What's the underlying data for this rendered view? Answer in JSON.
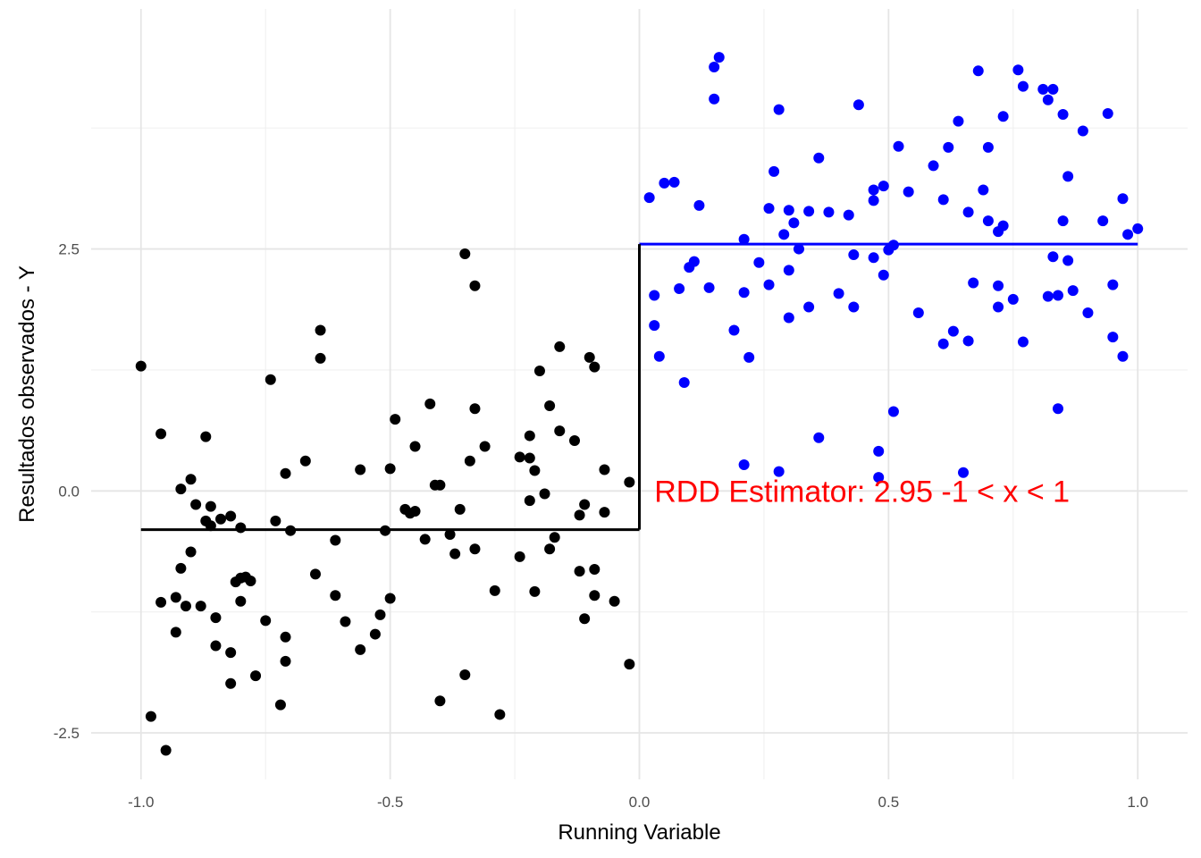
{
  "chart_data": {
    "type": "scatter",
    "title": "",
    "xlabel": "Running Variable",
    "ylabel": "Resultados observados - Y",
    "xlim": [
      -1.1,
      1.1
    ],
    "ylim": [
      -2.98,
      4.98
    ],
    "x_ticks": [
      -1.0,
      -0.5,
      0.0,
      0.5,
      1.0
    ],
    "x_tick_labels": [
      "-1.0",
      "-0.5",
      "0.0",
      "0.5",
      "1.0"
    ],
    "y_ticks": [
      -2.5,
      0.0,
      2.5
    ],
    "y_tick_labels": [
      "-2.5",
      "0.0",
      "2.5"
    ],
    "grid": true,
    "legend": "none",
    "cutoff": 0.0,
    "series": [
      {
        "side": "left",
        "color": "#000000",
        "fit": {
          "x": [
            -1.0,
            0.0
          ],
          "y": -0.4
        },
        "points": [
          [
            -1.0,
            1.29
          ],
          [
            -0.98,
            -2.33
          ],
          [
            -0.96,
            0.59
          ],
          [
            -0.96,
            -1.15
          ],
          [
            -0.95,
            -2.68
          ],
          [
            -0.93,
            -1.1
          ],
          [
            -0.93,
            -1.46
          ],
          [
            -0.92,
            0.02
          ],
          [
            -0.92,
            -0.8
          ],
          [
            -0.91,
            -1.19
          ],
          [
            -0.9,
            0.12
          ],
          [
            -0.9,
            -0.63
          ],
          [
            -0.89,
            -0.14
          ],
          [
            -0.88,
            -1.19
          ],
          [
            -0.87,
            0.56
          ],
          [
            -0.87,
            -0.31
          ],
          [
            -0.86,
            -0.36
          ],
          [
            -0.86,
            -0.16
          ],
          [
            -0.85,
            -1.31
          ],
          [
            -0.85,
            -1.6
          ],
          [
            -0.84,
            -0.29
          ],
          [
            -0.82,
            -1.67
          ],
          [
            -0.82,
            -0.26
          ],
          [
            -0.82,
            -1.99
          ],
          [
            -0.81,
            -0.94
          ],
          [
            -0.8,
            -0.38
          ],
          [
            -0.8,
            -0.9
          ],
          [
            -0.8,
            -1.14
          ],
          [
            -0.79,
            -0.89
          ],
          [
            -0.78,
            -0.93
          ],
          [
            -0.77,
            -1.91
          ],
          [
            -0.75,
            -1.34
          ],
          [
            -0.74,
            1.15
          ],
          [
            -0.73,
            -0.31
          ],
          [
            -0.72,
            -2.21
          ],
          [
            -0.71,
            0.18
          ],
          [
            -0.71,
            -1.51
          ],
          [
            -0.71,
            -1.76
          ],
          [
            -0.7,
            -0.41
          ],
          [
            -0.67,
            0.31
          ],
          [
            -0.65,
            -0.86
          ],
          [
            -0.64,
            1.66
          ],
          [
            -0.64,
            1.37
          ],
          [
            -0.61,
            -1.08
          ],
          [
            -0.61,
            -0.51
          ],
          [
            -0.59,
            -1.35
          ],
          [
            -0.56,
            -1.64
          ],
          [
            -0.56,
            0.22
          ],
          [
            -0.53,
            -1.48
          ],
          [
            -0.52,
            -1.28
          ],
          [
            -0.51,
            -0.41
          ],
          [
            -0.5,
            0.23
          ],
          [
            -0.5,
            -1.11
          ],
          [
            -0.49,
            0.74
          ],
          [
            -0.47,
            -0.19
          ],
          [
            -0.46,
            -0.23
          ],
          [
            -0.45,
            -0.21
          ],
          [
            -0.45,
            0.46
          ],
          [
            -0.43,
            -0.5
          ],
          [
            -0.42,
            0.9
          ],
          [
            -0.41,
            0.06
          ],
          [
            -0.4,
            -2.17
          ],
          [
            -0.4,
            0.06
          ],
          [
            -0.38,
            -0.45
          ],
          [
            -0.37,
            -0.65
          ],
          [
            -0.36,
            -0.19
          ],
          [
            -0.35,
            2.45
          ],
          [
            -0.35,
            -1.9
          ],
          [
            -0.34,
            0.31
          ],
          [
            -0.33,
            2.12
          ],
          [
            -0.33,
            0.85
          ],
          [
            -0.33,
            -0.6
          ],
          [
            -0.31,
            0.46
          ],
          [
            -0.29,
            -1.03
          ],
          [
            -0.28,
            -2.31
          ],
          [
            -0.24,
            -0.68
          ],
          [
            -0.24,
            0.35
          ],
          [
            -0.22,
            0.57
          ],
          [
            -0.22,
            0.34
          ],
          [
            -0.22,
            -0.1
          ],
          [
            -0.21,
            0.21
          ],
          [
            -0.21,
            -1.04
          ],
          [
            -0.2,
            1.24
          ],
          [
            -0.19,
            -0.03
          ],
          [
            -0.18,
            -0.6
          ],
          [
            -0.18,
            0.88
          ],
          [
            -0.17,
            -0.48
          ],
          [
            -0.16,
            1.49
          ],
          [
            -0.16,
            0.62
          ],
          [
            -0.13,
            0.52
          ],
          [
            -0.12,
            -0.25
          ],
          [
            -0.12,
            -0.83
          ],
          [
            -0.11,
            -0.14
          ],
          [
            -0.11,
            -1.32
          ],
          [
            -0.1,
            1.38
          ],
          [
            -0.09,
            1.28
          ],
          [
            -0.09,
            -0.81
          ],
          [
            -0.09,
            -1.08
          ],
          [
            -0.07,
            0.22
          ],
          [
            -0.07,
            -0.22
          ],
          [
            -0.05,
            -1.14
          ],
          [
            -0.02,
            0.09
          ],
          [
            -0.02,
            -1.79
          ]
        ]
      },
      {
        "side": "right",
        "color": "#0000ff",
        "fit": {
          "x": [
            0.0,
            1.0
          ],
          "y": 2.55
        },
        "points": [
          [
            0.02,
            3.03
          ],
          [
            0.03,
            2.02
          ],
          [
            0.03,
            1.71
          ],
          [
            0.04,
            1.39
          ],
          [
            0.05,
            3.18
          ],
          [
            0.07,
            3.19
          ],
          [
            0.08,
            2.09
          ],
          [
            0.09,
            1.12
          ],
          [
            0.1,
            2.31
          ],
          [
            0.11,
            2.37
          ],
          [
            0.12,
            2.95
          ],
          [
            0.14,
            2.1
          ],
          [
            0.15,
            4.38
          ],
          [
            0.15,
            4.05
          ],
          [
            0.16,
            4.48
          ],
          [
            0.19,
            1.66
          ],
          [
            0.21,
            2.6
          ],
          [
            0.21,
            2.05
          ],
          [
            0.21,
            0.27
          ],
          [
            0.22,
            1.38
          ],
          [
            0.24,
            2.36
          ],
          [
            0.26,
            2.92
          ],
          [
            0.26,
            2.13
          ],
          [
            0.27,
            3.3
          ],
          [
            0.28,
            3.94
          ],
          [
            0.28,
            0.2
          ],
          [
            0.29,
            2.65
          ],
          [
            0.3,
            2.9
          ],
          [
            0.3,
            2.28
          ],
          [
            0.3,
            1.79
          ],
          [
            0.31,
            2.77
          ],
          [
            0.32,
            2.5
          ],
          [
            0.34,
            2.89
          ],
          [
            0.34,
            1.9
          ],
          [
            0.36,
            3.44
          ],
          [
            0.36,
            0.55
          ],
          [
            0.38,
            2.88
          ],
          [
            0.4,
            2.04
          ],
          [
            0.42,
            2.85
          ],
          [
            0.43,
            2.44
          ],
          [
            0.43,
            1.9
          ],
          [
            0.44,
            3.99
          ],
          [
            0.47,
            3.11
          ],
          [
            0.47,
            3.0
          ],
          [
            0.47,
            2.41
          ],
          [
            0.48,
            0.41
          ],
          [
            0.48,
            0.14
          ],
          [
            0.49,
            3.15
          ],
          [
            0.49,
            2.23
          ],
          [
            0.5,
            2.49
          ],
          [
            0.51,
            2.54
          ],
          [
            0.51,
            0.82
          ],
          [
            0.52,
            3.56
          ],
          [
            0.54,
            3.09
          ],
          [
            0.56,
            1.84
          ],
          [
            0.59,
            3.36
          ],
          [
            0.61,
            3.01
          ],
          [
            0.61,
            1.52
          ],
          [
            0.62,
            3.55
          ],
          [
            0.63,
            1.65
          ],
          [
            0.64,
            3.82
          ],
          [
            0.65,
            0.19
          ],
          [
            0.66,
            2.88
          ],
          [
            0.66,
            1.55
          ],
          [
            0.67,
            2.15
          ],
          [
            0.68,
            4.34
          ],
          [
            0.69,
            3.11
          ],
          [
            0.7,
            2.79
          ],
          [
            0.7,
            3.55
          ],
          [
            0.72,
            2.68
          ],
          [
            0.72,
            2.12
          ],
          [
            0.72,
            1.9
          ],
          [
            0.73,
            3.87
          ],
          [
            0.73,
            2.74
          ],
          [
            0.75,
            1.98
          ],
          [
            0.76,
            4.35
          ],
          [
            0.77,
            4.18
          ],
          [
            0.77,
            1.54
          ],
          [
            0.81,
            4.15
          ],
          [
            0.82,
            4.04
          ],
          [
            0.82,
            2.01
          ],
          [
            0.83,
            4.15
          ],
          [
            0.83,
            2.42
          ],
          [
            0.84,
            2.02
          ],
          [
            0.84,
            0.85
          ],
          [
            0.85,
            2.79
          ],
          [
            0.85,
            3.89
          ],
          [
            0.86,
            2.38
          ],
          [
            0.86,
            3.25
          ],
          [
            0.87,
            2.07
          ],
          [
            0.89,
            3.72
          ],
          [
            0.9,
            1.84
          ],
          [
            0.93,
            2.79
          ],
          [
            0.94,
            3.9
          ],
          [
            0.95,
            2.13
          ],
          [
            0.95,
            1.59
          ],
          [
            0.97,
            3.02
          ],
          [
            0.97,
            1.39
          ],
          [
            0.98,
            2.65
          ],
          [
            1.0,
            2.71
          ]
        ]
      }
    ],
    "annotation": {
      "text": "RDD Estimator:  2.95 -1 < x < 1",
      "x": 0.03,
      "y": 0.0,
      "color": "#ff0000"
    }
  }
}
